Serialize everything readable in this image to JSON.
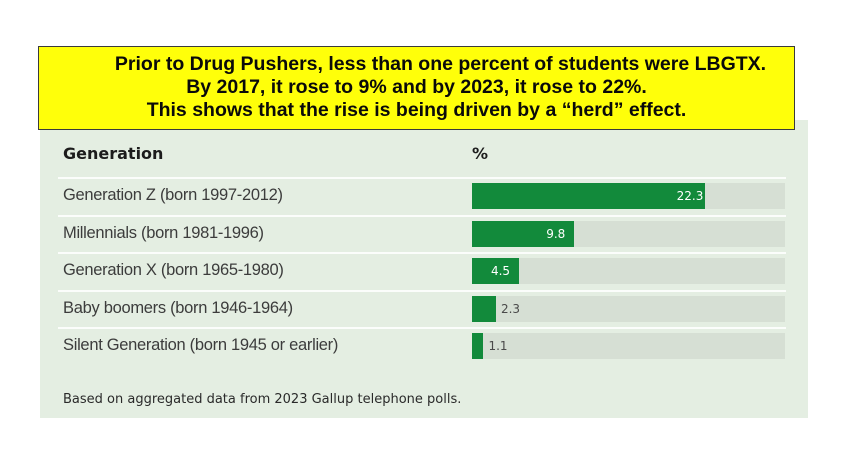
{
  "banner": {
    "line1": "Prior to Drug Pushers, less than one percent of students were LBGTX.",
    "line2": "By 2017, it rose to 9% and by 2023, it rose to 22%.",
    "line3": "This shows that the rise is being driven by a “herd” effect."
  },
  "colors": {
    "banner_bg": "#ffff0a",
    "panel_bg": "#e4eee2",
    "bar": "#128a3b",
    "track": "#d6dfd4"
  },
  "chart_data": {
    "type": "bar",
    "orientation": "horizontal",
    "column_headers": {
      "category": "Generation",
      "value": "%"
    },
    "categories": [
      "Generation Z (born 1997-2012)",
      "Millennials (born 1981-1996)",
      "Generation X (born 1965-1980)",
      "Baby boomers (born 1946-1964)",
      "Silent Generation (born 1945 or earlier)"
    ],
    "values": [
      22.3,
      9.8,
      4.5,
      2.3,
      1.1
    ],
    "value_labels": [
      "22.3",
      "9.8",
      "4.5",
      "2.3",
      "1.1"
    ],
    "xlim": [
      0,
      30
    ],
    "grid": false,
    "legend": "none",
    "footnote": "Based on aggregated data from 2023 Gallup telephone polls."
  }
}
